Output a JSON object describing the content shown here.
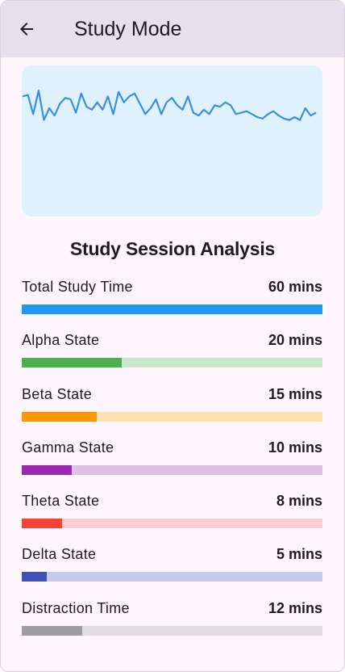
{
  "header": {
    "title": "Study Mode",
    "back_icon": "arrow-back-icon"
  },
  "waveform": {
    "line_color": "#3a8ee6",
    "background": "#dff2fb",
    "samples": [
      0.1,
      0.09,
      0.22,
      0.06,
      0.26,
      0.18,
      0.23,
      0.15,
      0.11,
      0.12,
      0.21,
      0.08,
      0.17,
      0.19,
      0.14,
      0.19,
      0.1,
      0.22,
      0.07,
      0.14,
      0.1,
      0.08,
      0.15,
      0.22,
      0.18,
      0.12,
      0.22,
      0.14,
      0.11,
      0.16,
      0.19,
      0.1,
      0.21,
      0.23,
      0.19,
      0.22,
      0.16,
      0.17,
      0.14,
      0.16,
      0.22,
      0.21,
      0.2,
      0.22,
      0.24,
      0.25,
      0.22,
      0.2,
      0.23,
      0.25,
      0.26,
      0.24,
      0.26,
      0.18,
      0.23,
      0.21
    ]
  },
  "analysis": {
    "heading": "Study Session Analysis",
    "rows": [
      {
        "label": "Total Study Time",
        "value": "60 mins",
        "fraction": 1.0,
        "color": "#2196f3",
        "track": "#2196f3"
      },
      {
        "label": "Alpha State",
        "value": "20 mins",
        "fraction": 0.333,
        "color": "#4caf50",
        "track": "#c8e6c9"
      },
      {
        "label": "Beta State",
        "value": "15 mins",
        "fraction": 0.25,
        "color": "#ff9800",
        "track": "#ffe0b2"
      },
      {
        "label": "Gamma State",
        "value": "10 mins",
        "fraction": 0.167,
        "color": "#9c27b0",
        "track": "#e1bee7"
      },
      {
        "label": "Theta State",
        "value": "8 mins",
        "fraction": 0.133,
        "color": "#f44336",
        "track": "#ffcdd2"
      },
      {
        "label": "Delta State",
        "value": "5 mins",
        "fraction": 0.083,
        "color": "#3f51b5",
        "track": "#c5cae9"
      },
      {
        "label": "Distraction Time",
        "value": "12 mins",
        "fraction": 0.2,
        "color": "#9e9e9e",
        "track": "#e0dde0"
      }
    ]
  }
}
